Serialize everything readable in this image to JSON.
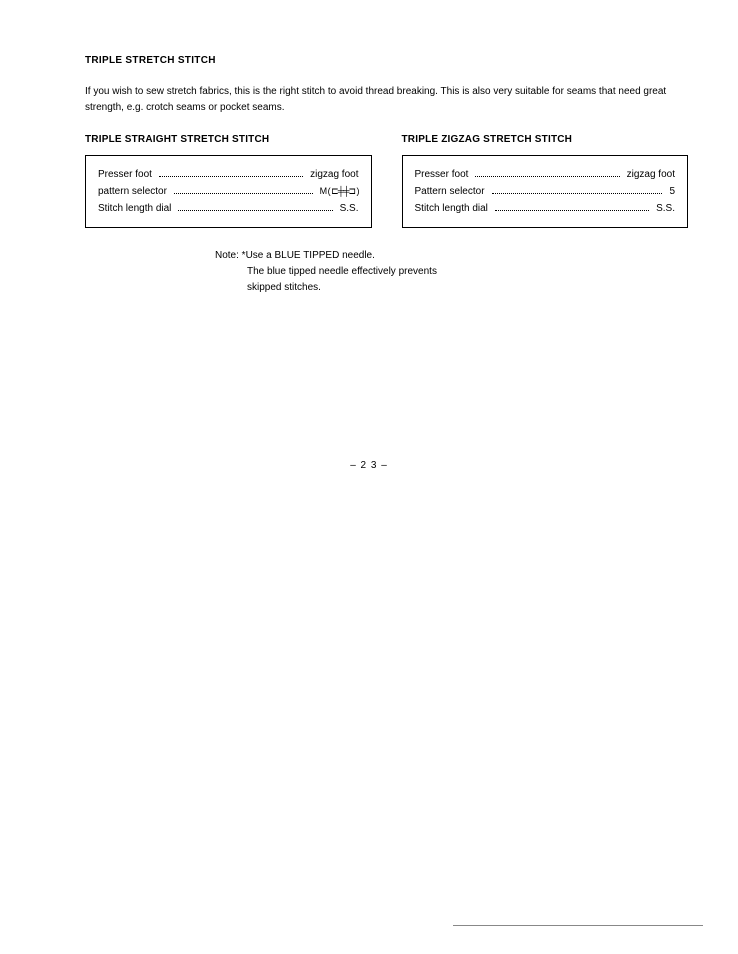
{
  "main_heading": "TRIPLE STRETCH STITCH",
  "intro_line": "If you wish to sew stretch fabrics, this is the right stitch to avoid thread breaking. This is also very suitable for seams that need great strength, e.g. crotch seams or pocket seams.",
  "left": {
    "heading": "TRIPLE STRAIGHT STRETCH STITCH",
    "rows": [
      {
        "label": "Presser foot",
        "value": "zigzag foot"
      },
      {
        "label": "pattern selector",
        "value": "M ( ⊏╪╪⊐ )"
      },
      {
        "label": "Stitch length dial",
        "value": "S.S."
      }
    ]
  },
  "right": {
    "heading": "TRIPLE ZIGZAG STRETCH STITCH",
    "rows": [
      {
        "label": "Presser foot",
        "value": "zigzag foot"
      },
      {
        "label": "Pattern selector",
        "value": "5"
      },
      {
        "label": "Stitch length dial",
        "value": "S.S."
      }
    ]
  },
  "note": {
    "line1": "Note: *Use a BLUE TIPPED needle.",
    "line2": "The blue tipped needle effectively prevents",
    "line3": "skipped stitches."
  },
  "page_number": "– 2 3 –"
}
